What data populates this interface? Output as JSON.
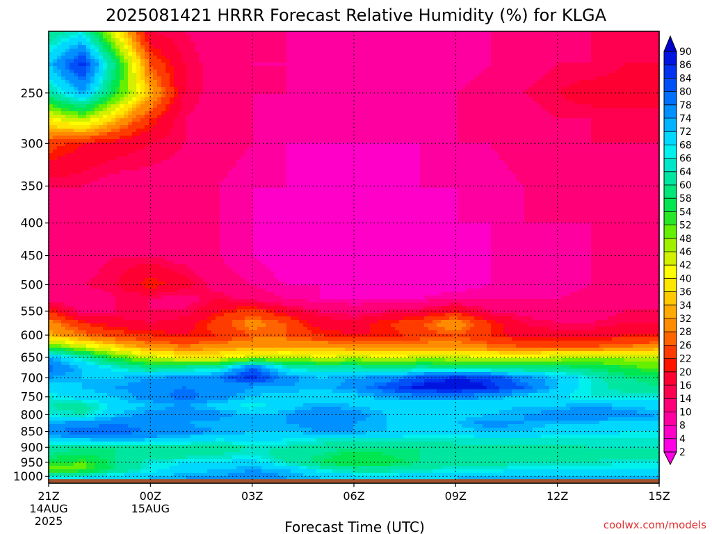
{
  "chart_data": {
    "type": "heatmap",
    "title": "2025081421 HRRR Forecast Relative Humidity (%) for KLGA",
    "xlabel": "Forecast Time (UTC)",
    "ylabel": "",
    "credit": "coolwx.com/models",
    "x_ticks": [
      {
        "hour": 0,
        "label": "21Z",
        "sub1": "14AUG",
        "sub2": "2025"
      },
      {
        "hour": 3,
        "label": "00Z",
        "sub1": "15AUG",
        "sub2": ""
      },
      {
        "hour": 6,
        "label": "03Z",
        "sub1": "",
        "sub2": ""
      },
      {
        "hour": 9,
        "label": "06Z",
        "sub1": "",
        "sub2": ""
      },
      {
        "hour": 12,
        "label": "09Z",
        "sub1": "",
        "sub2": ""
      },
      {
        "hour": 15,
        "label": "12Z",
        "sub1": "",
        "sub2": ""
      },
      {
        "hour": 18,
        "label": "15Z",
        "sub1": "",
        "sub2": ""
      }
    ],
    "xlim": [
      0,
      18
    ],
    "y_ticks": [
      250,
      300,
      350,
      400,
      450,
      500,
      550,
      600,
      650,
      700,
      750,
      800,
      850,
      900,
      950,
      1000
    ],
    "ylim": [
      1025,
      200
    ],
    "y_scale": "log-pressure (inverted)",
    "grid": "dotted",
    "surface_pressure": 1010,
    "colorbar": {
      "labels": [
        90,
        86,
        84,
        80,
        78,
        74,
        72,
        68,
        66,
        64,
        60,
        58,
        54,
        52,
        48,
        46,
        42,
        40,
        36,
        34,
        32,
        28,
        26,
        22,
        20,
        16,
        14,
        10,
        8,
        4,
        2
      ],
      "colors": [
        "#0000cd",
        "#0014e0",
        "#0032f0",
        "#0050f8",
        "#0070ff",
        "#0090ff",
        "#00b4ff",
        "#00d8ff",
        "#00f0ee",
        "#00e6c8",
        "#00e6a0",
        "#00e678",
        "#00e650",
        "#28e628",
        "#64f000",
        "#a0f000",
        "#d2f000",
        "#ffff00",
        "#ffe600",
        "#ffc800",
        "#ffaa00",
        "#ff8c00",
        "#ff6400",
        "#ff3c00",
        "#ff1400",
        "#ff0032",
        "#ff0050",
        "#ff0078",
        "#ff00a0",
        "#ff00c8",
        "#ff00e6"
      ]
    },
    "levels": [
      200,
      225,
      250,
      275,
      300,
      350,
      400,
      450,
      500,
      525,
      550,
      575,
      600,
      625,
      650,
      675,
      700,
      725,
      750,
      775,
      800,
      825,
      850,
      875,
      900,
      925,
      950,
      975,
      1000
    ],
    "hours": [
      0,
      1,
      2,
      3,
      4,
      5,
      6,
      7,
      8,
      9,
      10,
      11,
      12,
      13,
      14,
      15,
      16,
      17,
      18
    ],
    "rh": [
      [
        60,
        66,
        40,
        16,
        14,
        12,
        10,
        10,
        10,
        8,
        8,
        8,
        8,
        10,
        12,
        12,
        14,
        14,
        14
      ],
      [
        72,
        86,
        58,
        26,
        16,
        12,
        10,
        10,
        8,
        8,
        8,
        8,
        8,
        10,
        12,
        14,
        14,
        16,
        16
      ],
      [
        62,
        74,
        54,
        34,
        16,
        12,
        10,
        10,
        8,
        8,
        8,
        10,
        10,
        12,
        14,
        16,
        18,
        18,
        18
      ],
      [
        40,
        46,
        34,
        22,
        14,
        12,
        10,
        8,
        8,
        8,
        8,
        8,
        10,
        10,
        12,
        14,
        14,
        14,
        14
      ],
      [
        24,
        20,
        18,
        16,
        14,
        12,
        10,
        8,
        8,
        8,
        8,
        8,
        10,
        10,
        12,
        12,
        14,
        14,
        14
      ],
      [
        14,
        14,
        12,
        12,
        12,
        10,
        8,
        8,
        6,
        6,
        6,
        8,
        8,
        8,
        10,
        10,
        12,
        12,
        12
      ],
      [
        12,
        12,
        12,
        12,
        12,
        10,
        8,
        6,
        6,
        6,
        6,
        6,
        8,
        8,
        10,
        10,
        10,
        12,
        12
      ],
      [
        12,
        12,
        14,
        14,
        12,
        10,
        8,
        6,
        6,
        6,
        6,
        6,
        6,
        8,
        8,
        8,
        10,
        10,
        10
      ],
      [
        12,
        14,
        16,
        22,
        18,
        12,
        10,
        8,
        8,
        6,
        6,
        6,
        6,
        8,
        8,
        8,
        10,
        10,
        10
      ],
      [
        12,
        10,
        14,
        14,
        12,
        16,
        12,
        10,
        8,
        8,
        8,
        8,
        10,
        10,
        10,
        10,
        12,
        12,
        12
      ],
      [
        22,
        12,
        14,
        14,
        14,
        20,
        24,
        18,
        14,
        12,
        14,
        16,
        20,
        14,
        12,
        12,
        12,
        14,
        14
      ],
      [
        30,
        22,
        18,
        16,
        18,
        24,
        30,
        26,
        18,
        18,
        22,
        26,
        32,
        22,
        16,
        14,
        14,
        16,
        16
      ],
      [
        34,
        28,
        24,
        22,
        20,
        22,
        26,
        26,
        22,
        20,
        20,
        24,
        26,
        22,
        18,
        18,
        18,
        20,
        20
      ],
      [
        52,
        44,
        36,
        30,
        28,
        30,
        32,
        32,
        32,
        30,
        30,
        30,
        30,
        28,
        26,
        26,
        26,
        28,
        30
      ],
      [
        74,
        64,
        52,
        44,
        40,
        40,
        44,
        46,
        42,
        44,
        42,
        44,
        44,
        42,
        42,
        44,
        46,
        46,
        46
      ],
      [
        80,
        72,
        66,
        60,
        62,
        64,
        80,
        66,
        62,
        62,
        60,
        62,
        60,
        60,
        60,
        60,
        58,
        54,
        50
      ],
      [
        74,
        72,
        72,
        74,
        76,
        78,
        86,
        76,
        72,
        74,
        76,
        82,
        86,
        84,
        76,
        72,
        66,
        60,
        58
      ],
      [
        70,
        72,
        74,
        76,
        78,
        76,
        74,
        74,
        72,
        76,
        82,
        88,
        90,
        86,
        80,
        72,
        66,
        62,
        60
      ],
      [
        66,
        70,
        72,
        76,
        80,
        76,
        72,
        70,
        70,
        70,
        74,
        76,
        76,
        74,
        70,
        68,
        66,
        66,
        66
      ],
      [
        64,
        62,
        70,
        72,
        74,
        70,
        66,
        70,
        74,
        72,
        70,
        68,
        68,
        70,
        72,
        72,
        74,
        72,
        70
      ],
      [
        66,
        64,
        72,
        76,
        78,
        76,
        72,
        74,
        78,
        76,
        72,
        70,
        70,
        72,
        74,
        76,
        78,
        76,
        74
      ],
      [
        74,
        76,
        78,
        76,
        74,
        72,
        72,
        74,
        76,
        74,
        72,
        70,
        72,
        76,
        74,
        72,
        72,
        70,
        70
      ],
      [
        78,
        80,
        80,
        78,
        76,
        74,
        72,
        72,
        74,
        74,
        72,
        70,
        70,
        72,
        72,
        70,
        70,
        68,
        68
      ],
      [
        70,
        72,
        74,
        72,
        70,
        68,
        70,
        68,
        66,
        66,
        66,
        66,
        66,
        66,
        66,
        66,
        66,
        66,
        66
      ],
      [
        62,
        60,
        60,
        62,
        62,
        62,
        64,
        64,
        62,
        60,
        60,
        60,
        62,
        62,
        62,
        62,
        64,
        64,
        64
      ],
      [
        60,
        58,
        60,
        60,
        62,
        64,
        66,
        62,
        60,
        56,
        58,
        60,
        62,
        62,
        62,
        62,
        62,
        62,
        62
      ],
      [
        56,
        52,
        60,
        66,
        68,
        68,
        70,
        64,
        58,
        54,
        56,
        60,
        62,
        62,
        64,
        64,
        64,
        66,
        66
      ],
      [
        48,
        50,
        60,
        66,
        70,
        72,
        74,
        72,
        66,
        62,
        62,
        64,
        66,
        66,
        68,
        68,
        68,
        68,
        68
      ],
      [
        66,
        68,
        70,
        72,
        74,
        74,
        76,
        74,
        72,
        70,
        70,
        70,
        72,
        72,
        72,
        72,
        72,
        72,
        72
      ]
    ]
  }
}
